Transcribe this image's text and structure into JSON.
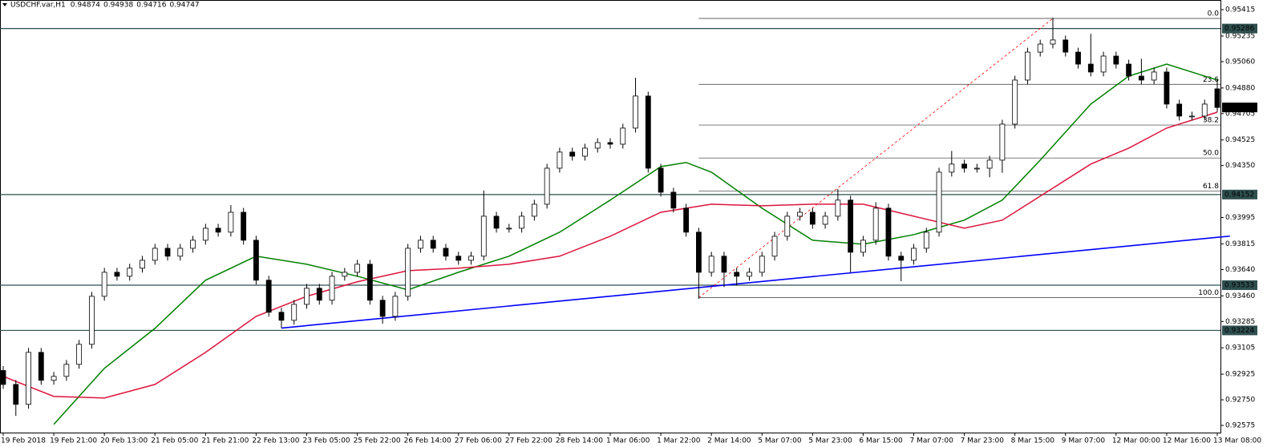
{
  "chart_data": {
    "type": "candlestick",
    "title": "USDCHF.var,H1",
    "categories": [
      "19 Feb 2018",
      null,
      null,
      null,
      "19 Feb 21:00",
      null,
      null,
      null,
      "20 Feb 13:00",
      null,
      null,
      null,
      "21 Feb 05:00",
      null,
      null,
      null,
      "21 Feb 21:00",
      null,
      null,
      null,
      "22 Feb 13:00",
      null,
      null,
      null,
      "23 Feb 05:00",
      null,
      null,
      null,
      "25 Feb 22:00",
      null,
      null,
      null,
      "26 Feb 14:00",
      null,
      null,
      null,
      "27 Feb 06:00",
      null,
      null,
      null,
      "27 Feb 22:00",
      null,
      null,
      null,
      "28 Feb 14:00",
      null,
      null,
      null,
      "1 Mar 06:00",
      null,
      null,
      null,
      "1 Mar 22:00",
      null,
      null,
      null,
      "2 Mar 14:00",
      null,
      null,
      null,
      "5 Mar 07:00",
      null,
      null,
      null,
      "5 Mar 23:00",
      null,
      null,
      null,
      "6 Mar 15:00",
      null,
      null,
      null,
      "7 Mar 07:00",
      null,
      null,
      null,
      "7 Mar 23:00",
      null,
      null,
      null,
      "8 Mar 15:00",
      null,
      null,
      null,
      "9 Mar 07:00",
      null,
      null,
      null,
      "12 Mar 00:00",
      null,
      null,
      null,
      "12 Mar 16:00",
      null,
      null,
      null,
      "13 Mar 08:00"
    ],
    "open": [
      0.9295,
      0.92855,
      0.92719,
      0.93074,
      0.92883,
      0.9291,
      0.92992,
      0.93129,
      0.93457,
      0.93621,
      0.93594,
      0.93649,
      0.93703,
      0.93785,
      0.93731,
      0.93785,
      0.9384,
      0.93922,
      0.93895,
      0.94031,
      0.9384,
      0.93567,
      0.93348,
      0.93293,
      0.93402,
      0.93512,
      0.9343,
      0.93594,
      0.93621,
      0.93676,
      0.9343,
      0.9332,
      0.93457,
      0.93785,
      0.9384,
      0.93785,
      0.93731,
      0.93703,
      0.93731,
      0.94004,
      0.93922,
      0.93922,
      0.94004,
      0.94086,
      0.94332,
      0.94442,
      0.94414,
      0.94469,
      0.94507,
      0.94496,
      0.94606,
      0.94825,
      0.94332,
      0.94168,
      0.94059,
      0.93895,
      0.93621,
      0.93731,
      0.93621,
      0.93594,
      0.93621,
      0.93731,
      0.93867,
      0.94004,
      0.94031,
      0.93949,
      0.94004,
      0.94114,
      0.93758,
      0.9384,
      0.94059,
      0.93731,
      0.93703,
      0.93785,
      0.93895,
      0.94305,
      0.9436,
      0.94332,
      0.94332,
      0.94387,
      0.94633,
      0.94934,
      0.95125,
      0.9518,
      0.95208,
      0.95125,
      0.95043,
      0.94989,
      0.95098,
      0.95043,
      0.94961,
      0.94934,
      0.94989,
      0.9477,
      0.94688,
      0.94688,
      0.94874
    ],
    "high": [
      0.9298,
      0.92885,
      0.93104,
      0.93104,
      0.9294,
      0.93022,
      0.93159,
      0.93487,
      0.93651,
      0.93651,
      0.93679,
      0.93733,
      0.93815,
      0.93815,
      0.93815,
      0.9387,
      0.93952,
      0.93952,
      0.9408,
      0.94061,
      0.9387,
      0.93597,
      0.93378,
      0.93432,
      0.93542,
      0.93542,
      0.93624,
      0.93651,
      0.93706,
      0.93706,
      0.9346,
      0.93487,
      0.93815,
      0.9387,
      0.9387,
      0.93815,
      0.93761,
      0.93761,
      0.9418,
      0.94034,
      0.93952,
      0.94034,
      0.94116,
      0.94362,
      0.94472,
      0.94472,
      0.94499,
      0.94537,
      0.94537,
      0.94636,
      0.9495,
      0.94855,
      0.94362,
      0.94198,
      0.94089,
      0.93925,
      0.93761,
      0.93761,
      0.93651,
      0.93651,
      0.93761,
      0.93897,
      0.94034,
      0.94061,
      0.94061,
      0.94034,
      0.9419,
      0.94144,
      0.9387,
      0.941,
      0.94089,
      0.93761,
      0.93815,
      0.93925,
      0.94335,
      0.9445,
      0.9439,
      0.94362,
      0.94417,
      0.94663,
      0.94964,
      0.95155,
      0.9521,
      0.9536,
      0.95238,
      0.95155,
      0.9525,
      0.95128,
      0.95128,
      0.95073,
      0.9508,
      0.95019,
      0.95019,
      0.948,
      0.94718,
      0.948,
      0.94938
    ],
    "low": [
      0.92825,
      0.9264,
      0.92689,
      0.92853,
      0.92853,
      0.9288,
      0.92962,
      0.93099,
      0.93427,
      0.93564,
      0.93564,
      0.93619,
      0.93673,
      0.93701,
      0.93701,
      0.93755,
      0.9381,
      0.93865,
      0.93865,
      0.9381,
      0.93537,
      0.93318,
      0.9324,
      0.93263,
      0.93372,
      0.934,
      0.934,
      0.93564,
      0.93591,
      0.934,
      0.9327,
      0.9329,
      0.93427,
      0.93755,
      0.93755,
      0.93701,
      0.93673,
      0.93673,
      0.93701,
      0.93892,
      0.93892,
      0.93892,
      0.93974,
      0.94056,
      0.94302,
      0.94384,
      0.94384,
      0.94439,
      0.94466,
      0.94466,
      0.94576,
      0.94302,
      0.94138,
      0.94029,
      0.93865,
      0.9344,
      0.93591,
      0.9352,
      0.9353,
      0.93564,
      0.93591,
      0.93701,
      0.93837,
      0.93974,
      0.93919,
      0.93919,
      0.93974,
      0.9362,
      0.93728,
      0.9381,
      0.93701,
      0.9356,
      0.93673,
      0.93755,
      0.93865,
      0.94275,
      0.94302,
      0.94302,
      0.9427,
      0.943,
      0.94603,
      0.94904,
      0.95095,
      0.9515,
      0.95095,
      0.95013,
      0.94959,
      0.94959,
      0.95013,
      0.94931,
      0.94904,
      0.94904,
      0.9474,
      0.94658,
      0.94658,
      0.94658,
      0.94716
    ],
    "close": [
      0.92855,
      0.92719,
      0.93074,
      0.92883,
      0.9291,
      0.92992,
      0.93129,
      0.93457,
      0.93621,
      0.93594,
      0.93649,
      0.93703,
      0.93785,
      0.93731,
      0.93785,
      0.9384,
      0.93922,
      0.93895,
      0.94031,
      0.9384,
      0.93567,
      0.93348,
      0.93293,
      0.93402,
      0.93512,
      0.9343,
      0.93594,
      0.93621,
      0.93676,
      0.9343,
      0.9332,
      0.93457,
      0.93785,
      0.9384,
      0.93785,
      0.93731,
      0.93703,
      0.93731,
      0.94004,
      0.93922,
      0.93922,
      0.94004,
      0.94086,
      0.94332,
      0.94442,
      0.94414,
      0.94469,
      0.94507,
      0.94496,
      0.94606,
      0.94825,
      0.94332,
      0.94168,
      0.94059,
      0.93895,
      0.93621,
      0.93731,
      0.93621,
      0.93594,
      0.93621,
      0.93731,
      0.93867,
      0.94004,
      0.94031,
      0.93949,
      0.94004,
      0.94114,
      0.93758,
      0.9384,
      0.94059,
      0.93731,
      0.93703,
      0.93785,
      0.93895,
      0.94305,
      0.9436,
      0.94332,
      0.94332,
      0.94387,
      0.94633,
      0.94934,
      0.95125,
      0.9518,
      0.95208,
      0.95125,
      0.95043,
      0.94989,
      0.95098,
      0.95043,
      0.94961,
      0.94934,
      0.94989,
      0.9477,
      0.94688,
      0.94688,
      0.9477,
      0.94747
    ],
    "bull_color": "#ffffff",
    "bear_color": "#000000",
    "ma_lines": [
      {
        "color": "#008000",
        "at": [
          4,
          8,
          12,
          16,
          20,
          24,
          28,
          32,
          36,
          40,
          44,
          48,
          52,
          54,
          56,
          60,
          64,
          68,
          72,
          76,
          79,
          82,
          86,
          89,
          92,
          96
        ],
        "values": [
          0.92582,
          0.92965,
          0.93238,
          0.93567,
          0.93731,
          0.93676,
          0.93594,
          0.93501,
          0.93621,
          0.93731,
          0.93895,
          0.94114,
          0.94343,
          0.94371,
          0.94305,
          0.94059,
          0.9384,
          0.93813,
          0.93878,
          0.93977,
          0.94114,
          0.94387,
          0.9477,
          0.94961,
          0.95043,
          0.94934
        ]
      },
      {
        "color": "#dc143c",
        "at": [
          0,
          4,
          8,
          12,
          16,
          20,
          24,
          28,
          32,
          36,
          40,
          44,
          48,
          52,
          56,
          60,
          64,
          68,
          72,
          76,
          79,
          82,
          86,
          89,
          92,
          96
        ],
        "values": [
          0.9291,
          0.92773,
          0.92762,
          0.92855,
          0.93074,
          0.9332,
          0.93457,
          0.93556,
          0.93632,
          0.93649,
          0.93676,
          0.93731,
          0.93867,
          0.94031,
          0.94086,
          0.94075,
          0.94086,
          0.94086,
          0.94004,
          0.93922,
          0.93977,
          0.94141,
          0.9436,
          0.94469,
          0.94606,
          0.94715
        ]
      }
    ],
    "trendline": {
      "color": "#0000ff",
      "at": [
        22,
        97
      ],
      "values": [
        0.9324,
        0.93868
      ]
    },
    "fib_line": {
      "color": "#ff0000",
      "at": [
        55,
        83
      ],
      "values": [
        0.93448,
        0.95355
      ]
    },
    "fib_start": 55,
    "fib_levels": [
      {
        "label": "0.0",
        "price": 0.95355
      },
      {
        "label": "23.6",
        "price": 0.94905
      },
      {
        "label": "38.2",
        "price": 0.94627
      },
      {
        "label": "50.0",
        "price": 0.94402
      },
      {
        "label": "61.8",
        "price": 0.94177
      },
      {
        "label": "100.0",
        "price": 0.93448
      }
    ],
    "hlines": [
      0.95286,
      0.94152,
      0.93533,
      0.93224
    ],
    "ylim": [
      0.92526,
      0.95481
    ],
    "yticks": [
      0.95415,
      0.95235,
      {
        "value": 0.9506,
        "label": "0.95060"
      },
      {
        "value": 0.9488,
        "label": "0.94880"
      },
      0.94705,
      0.94525,
      {
        "value": 0.9435,
        "label": "0.94350"
      },
      0.93995,
      0.93815,
      {
        "value": 0.9364,
        "label": "0.93640"
      },
      {
        "value": 0.9346,
        "label": "0.93460"
      },
      0.93285,
      0.93105,
      0.92925,
      {
        "value": 0.9275,
        "label": "0.92750"
      },
      0.92575
    ]
  }
}
